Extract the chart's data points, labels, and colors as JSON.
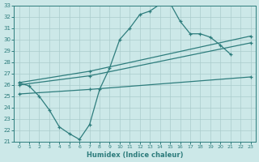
{
  "xlabel": "Humidex (Indice chaleur)",
  "ylabel": "",
  "xlim": [
    -0.5,
    23.5
  ],
  "ylim": [
    21,
    33
  ],
  "xticks": [
    0,
    1,
    2,
    3,
    4,
    5,
    6,
    7,
    8,
    9,
    10,
    11,
    12,
    13,
    14,
    15,
    16,
    17,
    18,
    19,
    20,
    21,
    22,
    23
  ],
  "yticks": [
    21,
    22,
    23,
    24,
    25,
    26,
    27,
    28,
    29,
    30,
    31,
    32,
    33
  ],
  "bg_color": "#cce8e8",
  "line_color": "#2e7d7d",
  "grid_color": "#aacccc",
  "series": {
    "line1_x": [
      0,
      1,
      2,
      3,
      4,
      5,
      6,
      7,
      8,
      9,
      10,
      11,
      12,
      13,
      14,
      15,
      16,
      17,
      18,
      19,
      20,
      21
    ],
    "line1_y": [
      26.2,
      25.9,
      25.0,
      23.8,
      22.3,
      21.7,
      21.2,
      22.5,
      25.6,
      27.5,
      30.0,
      31.0,
      32.2,
      32.5,
      33.1,
      33.2,
      31.6,
      30.5,
      30.5,
      30.2,
      29.5,
      28.7
    ],
    "line2_x": [
      0,
      7,
      23
    ],
    "line2_y": [
      26.2,
      27.2,
      30.3
    ],
    "line3_x": [
      0,
      7,
      23
    ],
    "line3_y": [
      26.0,
      26.8,
      29.7
    ],
    "line4_x": [
      0,
      7,
      23
    ],
    "line4_y": [
      25.2,
      25.6,
      26.7
    ]
  },
  "marker": "+"
}
